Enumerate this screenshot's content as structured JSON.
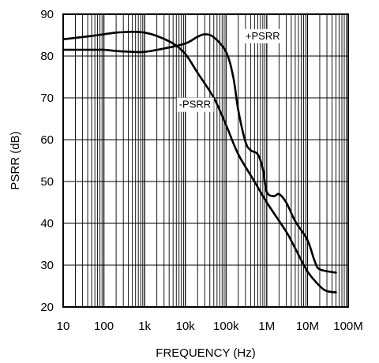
{
  "chart_data": {
    "type": "line",
    "xlabel": "FREQUENCY (Hz)",
    "ylabel": "PSRR (dB)",
    "x_scale": "log",
    "xlim": [
      10,
      100000000
    ],
    "ylim": [
      20,
      90
    ],
    "grid": true,
    "x_ticks": [
      {
        "value": 10,
        "label": "10"
      },
      {
        "value": 100,
        "label": "100"
      },
      {
        "value": 1000,
        "label": "1k"
      },
      {
        "value": 10000,
        "label": "10k"
      },
      {
        "value": 100000,
        "label": "100k"
      },
      {
        "value": 1000000,
        "label": "1M"
      },
      {
        "value": 10000000,
        "label": "10M"
      },
      {
        "value": 100000000,
        "label": "100M"
      }
    ],
    "y_ticks": [
      20,
      30,
      40,
      50,
      60,
      70,
      80,
      90
    ],
    "series": [
      {
        "name": "+PSRR",
        "points": [
          [
            10,
            81.5
          ],
          [
            50,
            81.5
          ],
          [
            100,
            81.5
          ],
          [
            200,
            81.2
          ],
          [
            500,
            81.0
          ],
          [
            1000,
            81.0
          ],
          [
            3000,
            81.8
          ],
          [
            10000,
            83.0
          ],
          [
            20000,
            84.6
          ],
          [
            30000,
            85.2
          ],
          [
            50000,
            84.5
          ],
          [
            100000,
            81.0
          ],
          [
            150000,
            75.0
          ],
          [
            200000,
            67.0
          ],
          [
            300000,
            59.5
          ],
          [
            400000,
            57.5
          ],
          [
            600000,
            56.5
          ],
          [
            800000,
            53.0
          ],
          [
            1000000,
            47.5
          ],
          [
            1500000,
            46.5
          ],
          [
            2000000,
            47.0
          ],
          [
            3000000,
            45.0
          ],
          [
            5000000,
            40.5
          ],
          [
            10000000,
            36.0
          ],
          [
            15000000,
            31.0
          ],
          [
            20000000,
            29.0
          ],
          [
            50000000,
            28.2
          ]
        ]
      },
      {
        "name": "-PSRR",
        "points": [
          [
            10,
            84.0
          ],
          [
            50,
            84.8
          ],
          [
            100,
            85.2
          ],
          [
            200,
            85.6
          ],
          [
            500,
            85.8
          ],
          [
            1000,
            85.6
          ],
          [
            2000,
            84.8
          ],
          [
            5000,
            83.0
          ],
          [
            10000,
            80.5
          ],
          [
            20000,
            76.0
          ],
          [
            50000,
            70.0
          ],
          [
            100000,
            63.5
          ],
          [
            200000,
            56.5
          ],
          [
            500000,
            50.0
          ],
          [
            1000000,
            45.0
          ],
          [
            3000000,
            38.0
          ],
          [
            5000000,
            34.0
          ],
          [
            10000000,
            28.5
          ],
          [
            20000000,
            25.0
          ],
          [
            30000000,
            23.8
          ],
          [
            50000000,
            23.5
          ]
        ]
      }
    ],
    "annotations": [
      {
        "text": "+PSRR",
        "x": 300000,
        "y": 84.0
      },
      {
        "text": "-PSRR",
        "x": 7000,
        "y": 67.6
      }
    ]
  }
}
